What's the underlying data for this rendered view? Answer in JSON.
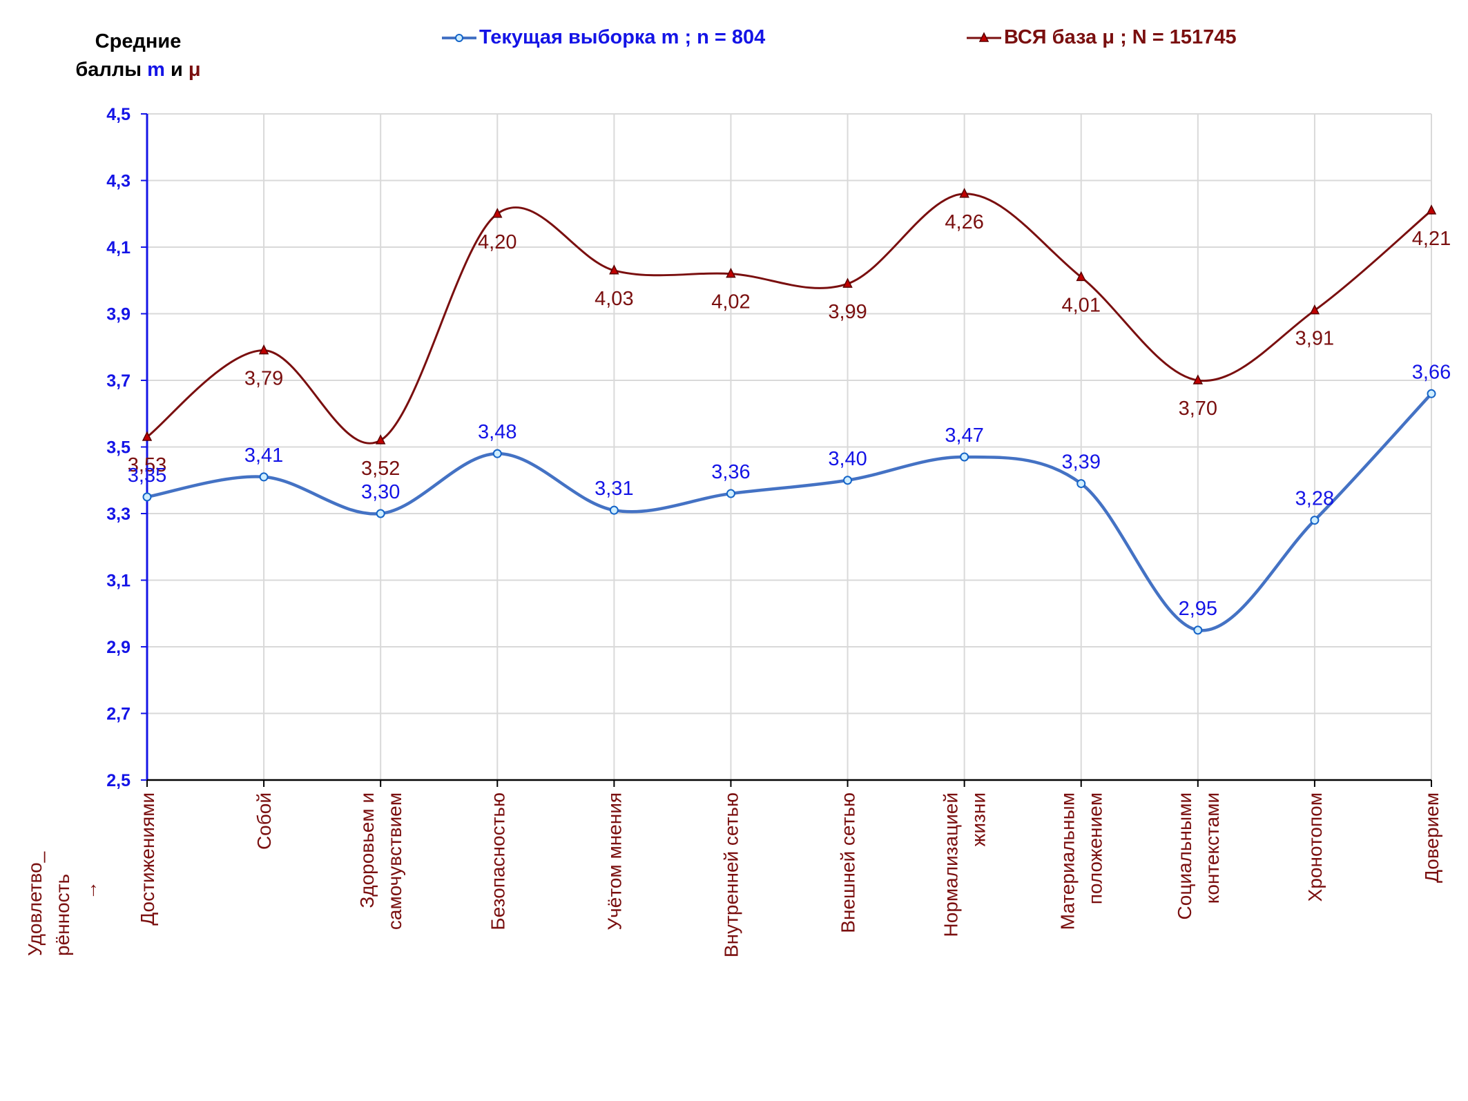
{
  "chart_data": {
    "type": "line",
    "title": "",
    "ylabel": {
      "line1": "Средние",
      "line2_prefix": "баллы",
      "sym1": "m",
      "joiner": "и",
      "sym2": "μ"
    },
    "xlabel": "Удовлетво_ рённость →",
    "ylim": [
      2.5,
      4.5
    ],
    "yticks": [
      "2,5",
      "2,7",
      "2,9",
      "3,1",
      "3,3",
      "3,5",
      "3,7",
      "3,9",
      "4,1",
      "4,3",
      "4,5"
    ],
    "ytick_values": [
      2.5,
      2.7,
      2.9,
      3.1,
      3.3,
      3.5,
      3.7,
      3.9,
      4.1,
      4.3,
      4.5
    ],
    "grid": true,
    "legend_position": "top",
    "categories": [
      [
        "Достижениями"
      ],
      [
        "Собой"
      ],
      [
        "Здоровьем и",
        "самочувствием"
      ],
      [
        "Безопасностью"
      ],
      [
        "Учётом мнения"
      ],
      [
        "Внутренней сетью"
      ],
      [
        "Внешней сетью"
      ],
      [
        "Нормализацией",
        "жизни"
      ],
      [
        "Материальным",
        "положением"
      ],
      [
        "Социальными",
        "контекстами"
      ],
      [
        "Хронотопом"
      ],
      [
        "Доверием"
      ]
    ],
    "series": [
      {
        "name": "Текущая выборка m ; n = 804",
        "color": "#4472c4",
        "label_color": "#1414e6",
        "marker": "circle",
        "values": [
          3.35,
          3.41,
          3.3,
          3.48,
          3.31,
          3.36,
          3.4,
          3.47,
          3.39,
          2.95,
          3.28,
          3.66
        ],
        "labels": [
          "3,35",
          "3,41",
          "3,30",
          "3,48",
          "3,31",
          "3,36",
          "3,40",
          "3,47",
          "3,39",
          "2,95",
          "3,28",
          "3,66"
        ]
      },
      {
        "name": "ВСЯ база μ ; N = 151745",
        "color": "#7a0f0f",
        "label_color": "#7a0f0f",
        "marker": "triangle",
        "values": [
          3.53,
          3.79,
          3.52,
          4.2,
          4.03,
          4.02,
          3.99,
          4.26,
          4.01,
          3.7,
          3.91,
          4.21
        ],
        "labels": [
          "3,53",
          "3,79",
          "3,52",
          "4,20",
          "4,03",
          "4,02",
          "3,99",
          "4,26",
          "4,01",
          "3,70",
          "3,91",
          "4,21"
        ]
      }
    ]
  }
}
